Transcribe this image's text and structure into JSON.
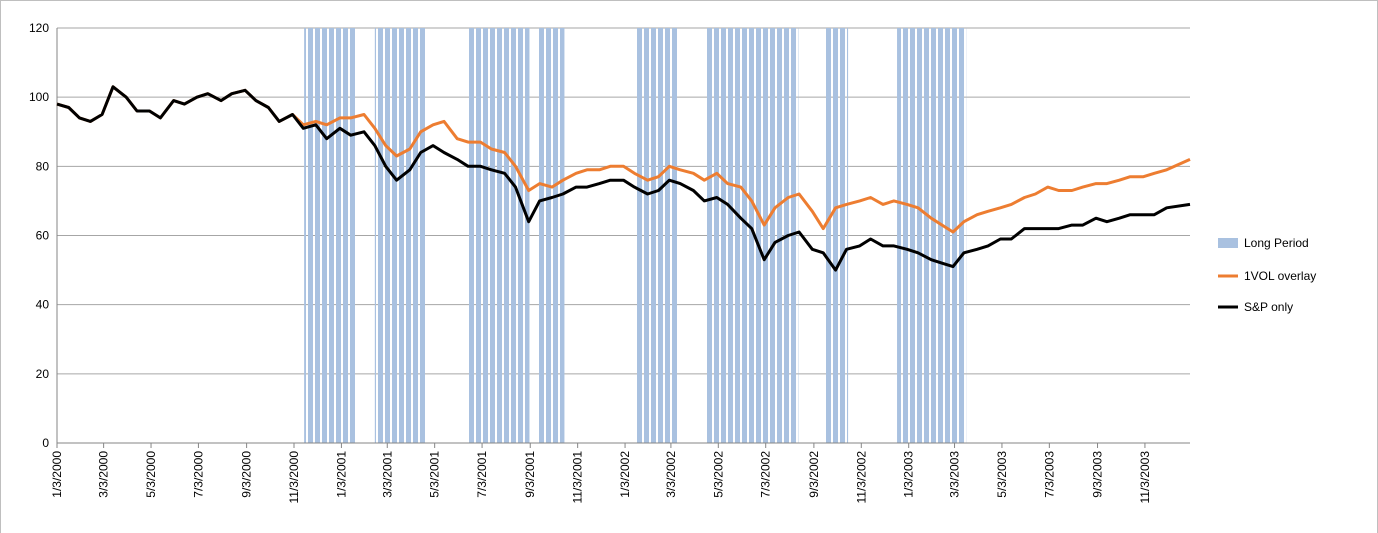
{
  "chart_data": {
    "type": "line",
    "x": [
      "1/3/2000",
      "1/18/2000",
      "2/1/2000",
      "2/15/2000",
      "3/1/2000",
      "3/15/2000",
      "4/1/2000",
      "4/15/2000",
      "5/1/2000",
      "5/15/2000",
      "6/1/2000",
      "6/15/2000",
      "7/1/2000",
      "7/15/2000",
      "8/1/2000",
      "8/15/2000",
      "9/1/2000",
      "9/15/2000",
      "10/1/2000",
      "10/15/2000",
      "11/1/2000",
      "11/15/2000",
      "12/1/2000",
      "12/15/2000",
      "1/1/2001",
      "1/15/2001",
      "2/1/2001",
      "2/15/2001",
      "3/1/2001",
      "3/15/2001",
      "4/1/2001",
      "4/15/2001",
      "5/1/2001",
      "5/15/2001",
      "6/1/2001",
      "6/15/2001",
      "7/1/2001",
      "7/15/2001",
      "8/1/2001",
      "8/15/2001",
      "9/1/2001",
      "9/15/2001",
      "10/1/2001",
      "10/15/2001",
      "11/1/2001",
      "11/15/2001",
      "12/1/2001",
      "12/15/2001",
      "1/1/2002",
      "1/15/2002",
      "2/1/2002",
      "2/15/2002",
      "3/1/2002",
      "3/15/2002",
      "4/1/2002",
      "4/15/2002",
      "5/1/2002",
      "5/15/2002",
      "6/1/2002",
      "6/15/2002",
      "7/1/2002",
      "7/15/2002",
      "8/1/2002",
      "8/15/2002",
      "9/1/2002",
      "9/15/2002",
      "10/1/2002",
      "10/15/2002",
      "11/1/2002",
      "11/15/2002",
      "12/1/2002",
      "12/15/2002",
      "1/1/2003",
      "1/15/2003",
      "2/1/2003",
      "2/15/2003",
      "3/1/2003",
      "3/15/2003",
      "4/1/2003",
      "4/15/2003",
      "5/1/2003",
      "5/15/2003",
      "6/1/2003",
      "6/15/2003",
      "7/1/2003",
      "7/15/2003",
      "8/1/2003",
      "8/15/2003",
      "9/1/2003",
      "9/15/2003",
      "10/1/2003",
      "10/15/2003",
      "11/1/2003",
      "11/15/2003",
      "12/1/2003",
      "12/31/2003"
    ],
    "xlim": [
      "1/3/2000",
      "12/31/2003"
    ],
    "xticks": [
      "1/3/2000",
      "3/3/2000",
      "5/3/2000",
      "7/3/2000",
      "9/3/2000",
      "11/3/2000",
      "1/3/2001",
      "3/3/2001",
      "5/3/2001",
      "7/3/2001",
      "9/3/2001",
      "11/3/2001",
      "1/3/2002",
      "3/3/2002",
      "5/3/2002",
      "7/3/2002",
      "9/3/2002",
      "11/3/2002",
      "1/3/2003",
      "3/3/2003",
      "5/3/2003",
      "7/3/2003",
      "9/3/2003",
      "11/3/2003"
    ],
    "ylim": [
      0,
      120
    ],
    "yticks": [
      0,
      20,
      40,
      60,
      80,
      100,
      120
    ],
    "grid": true,
    "legend": "right",
    "shaded": {
      "name": "Long Period",
      "color": "#a9c1e0",
      "ranges": [
        [
          "11/16/2000",
          "1/21/2001"
        ],
        [
          "2/15/2001",
          "4/22/2001"
        ],
        [
          "6/16/2001",
          "9/2/2001"
        ],
        [
          "9/14/2001",
          "10/17/2001"
        ],
        [
          "1/17/2002",
          "3/13/2002"
        ],
        [
          "4/17/2002",
          "8/14/2002"
        ],
        [
          "9/17/2002",
          "10/17/2002"
        ],
        [
          "12/19/2002",
          "3/18/2003"
        ]
      ]
    },
    "series": [
      {
        "name": "1VOL overlay",
        "color": "#ed7d31",
        "values": [
          98,
          97,
          94,
          93,
          95,
          103,
          100,
          96,
          96,
          94,
          99,
          98,
          100,
          101,
          99,
          101,
          102,
          99,
          97,
          93,
          95,
          92,
          93,
          92,
          94,
          94,
          95,
          91,
          86,
          83,
          85,
          90,
          92,
          93,
          88,
          87,
          87,
          85,
          84,
          80,
          73,
          75,
          74,
          76,
          78,
          79,
          79,
          80,
          80,
          78,
          76,
          77,
          80,
          79,
          78,
          76,
          78,
          75,
          74,
          70,
          63,
          68,
          71,
          72,
          67,
          62,
          68,
          69,
          70,
          71,
          69,
          70,
          69,
          68,
          65,
          63,
          61,
          64,
          66,
          67,
          68,
          69,
          71,
          72,
          74,
          73,
          73,
          74,
          75,
          75,
          76,
          77,
          77,
          78,
          79,
          82
        ]
      },
      {
        "name": "S&P only",
        "color": "#000000",
        "values": [
          98,
          97,
          94,
          93,
          95,
          103,
          100,
          96,
          96,
          94,
          99,
          98,
          100,
          101,
          99,
          101,
          102,
          99,
          97,
          93,
          95,
          91,
          92,
          88,
          91,
          89,
          90,
          86,
          80,
          76,
          79,
          84,
          86,
          84,
          82,
          80,
          80,
          79,
          78,
          74,
          64,
          70,
          71,
          72,
          74,
          74,
          75,
          76,
          76,
          74,
          72,
          73,
          76,
          75,
          73,
          70,
          71,
          69,
          65,
          62,
          53,
          58,
          60,
          61,
          56,
          55,
          50,
          56,
          57,
          59,
          57,
          57,
          56,
          55,
          53,
          52,
          51,
          55,
          56,
          57,
          59,
          59,
          62,
          62,
          62,
          62,
          63,
          63,
          65,
          64,
          65,
          66,
          66,
          66,
          68,
          69
        ]
      }
    ]
  }
}
